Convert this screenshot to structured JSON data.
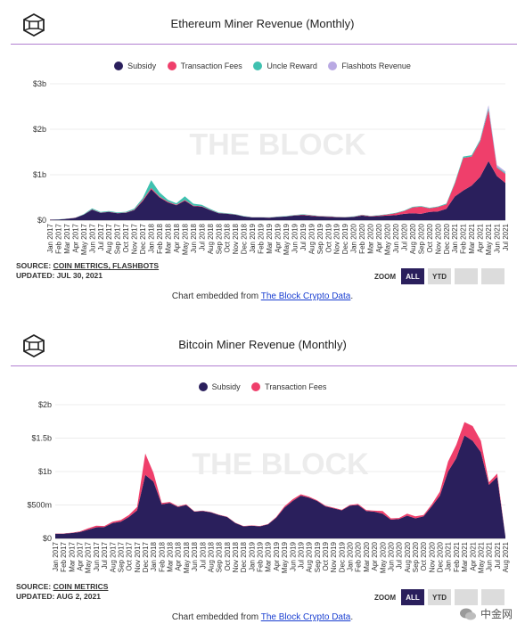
{
  "charts_meta": [
    {
      "title": "Ethereum Miner Revenue (Monthly)",
      "source_prefix": "SOURCE:",
      "source_names": "COIN METRICS, FLASHBOTS",
      "updated": "UPDATED: JUL 30, 2021",
      "watermark": "THE BLOCK",
      "zoom_label": "ZOOM",
      "zoom_all": "ALL",
      "zoom_ytd": "YTD",
      "embed_prefix": "Chart embedded from ",
      "embed_link": "The Block Crypto Data",
      "embed_suffix": "."
    },
    {
      "title": "Bitcoin Miner Revenue (Monthly)",
      "source_prefix": "SOURCE:",
      "source_names": "COIN METRICS",
      "updated": "UPDATED: AUG 2, 2021",
      "watermark": "THE BLOCK",
      "zoom_label": "ZOOM",
      "zoom_all": "ALL",
      "zoom_ytd": "YTD",
      "embed_prefix": "Chart embedded from ",
      "embed_link": "The Block Crypto Data",
      "embed_suffix": "."
    }
  ],
  "wechat_watermark": "中金网",
  "chart_data": [
    {
      "type": "area",
      "title": "Ethereum Miner Revenue (Monthly)",
      "stacked": true,
      "yticks": [
        "$0",
        "$1b",
        "$2b",
        "$3b"
      ],
      "ylim": [
        0,
        3000000000
      ],
      "legend_position": "top-center",
      "x": [
        "Jan 2017",
        "Feb 2017",
        "Mar 2017",
        "Apr 2017",
        "May 2017",
        "Jun 2017",
        "Jul 2017",
        "Aug 2017",
        "Sep 2017",
        "Oct 2017",
        "Nov 2017",
        "Dec 2017",
        "Jan 2018",
        "Feb 2018",
        "Mar 2018",
        "Apr 2018",
        "May 2018",
        "Jun 2018",
        "Jul 2018",
        "Aug 2018",
        "Sep 2018",
        "Oct 2018",
        "Nov 2018",
        "Dec 2018",
        "Jan 2019",
        "Feb 2019",
        "Mar 2019",
        "Apr 2019",
        "May 2019",
        "Jun 2019",
        "Jul 2019",
        "Aug 2019",
        "Sep 2019",
        "Oct 2019",
        "Nov 2019",
        "Dec 2019",
        "Jan 2020",
        "Feb 2020",
        "Mar 2020",
        "Apr 2020",
        "May 2020",
        "Jun 2020",
        "Jul 2020",
        "Aug 2020",
        "Sep 2020",
        "Oct 2020",
        "Nov 2020",
        "Dec 2020",
        "Jan 2021",
        "Feb 2021",
        "Mar 2021",
        "Apr 2021",
        "May 2021",
        "Jun 2021",
        "Jul 2021"
      ],
      "series": [
        {
          "name": "Subsidy",
          "color": "#2a1f5c",
          "values": [
            10,
            15,
            30,
            50,
            120,
            230,
            160,
            180,
            150,
            160,
            220,
            420,
            680,
            500,
            390,
            330,
            430,
            310,
            300,
            220,
            150,
            140,
            120,
            80,
            60,
            60,
            55,
            70,
            80,
            100,
            110,
            95,
            80,
            75,
            65,
            60,
            70,
            100,
            80,
            90,
            100,
            110,
            140,
            150,
            140,
            180,
            190,
            250,
            520,
            650,
            760,
            950,
            1300,
            970,
            820
          ]
        },
        {
          "name": "Transaction Fees",
          "color": "#ef3f6b",
          "values": [
            1,
            1,
            1,
            2,
            4,
            8,
            6,
            6,
            6,
            8,
            12,
            25,
            30,
            20,
            15,
            12,
            15,
            12,
            10,
            8,
            6,
            5,
            5,
            4,
            3,
            3,
            3,
            4,
            5,
            8,
            10,
            10,
            8,
            8,
            6,
            6,
            7,
            12,
            10,
            12,
            25,
            40,
            60,
            130,
            160,
            80,
            100,
            100,
            280,
            720,
            640,
            780,
            1130,
            180,
            200
          ]
        },
        {
          "name": "Uncle Reward",
          "color": "#3fc1b0",
          "values": [
            1,
            1,
            2,
            3,
            8,
            20,
            15,
            16,
            14,
            16,
            22,
            40,
            170,
            90,
            40,
            30,
            80,
            40,
            30,
            20,
            12,
            10,
            8,
            6,
            4,
            4,
            4,
            5,
            6,
            8,
            10,
            9,
            7,
            6,
            5,
            5,
            6,
            8,
            7,
            8,
            9,
            10,
            12,
            14,
            12,
            12,
            12,
            15,
            25,
            30,
            30,
            35,
            40,
            25,
            20
          ]
        },
        {
          "name": "Flashbots Revenue",
          "color": "#b9a9e3",
          "values": [
            0,
            0,
            0,
            0,
            0,
            0,
            0,
            0,
            0,
            0,
            0,
            0,
            0,
            0,
            0,
            0,
            0,
            0,
            0,
            0,
            0,
            0,
            0,
            0,
            0,
            0,
            0,
            0,
            0,
            0,
            0,
            0,
            0,
            0,
            0,
            0,
            0,
            0,
            0,
            0,
            0,
            0,
            0,
            0,
            0,
            0,
            0,
            0,
            0,
            0,
            0,
            10,
            60,
            40,
            30
          ]
        }
      ]
    },
    {
      "type": "area",
      "title": "Bitcoin Miner Revenue (Monthly)",
      "stacked": true,
      "yticks": [
        "$0",
        "$500m",
        "$1b",
        "$1.5b",
        "$2b"
      ],
      "ylim": [
        0,
        2000000000
      ],
      "legend_position": "top-center",
      "x": [
        "Jan 2017",
        "Feb 2017",
        "Mar 2017",
        "Apr 2017",
        "May 2017",
        "Jun 2017",
        "Jul 2017",
        "Aug 2017",
        "Sep 2017",
        "Oct 2017",
        "Nov 2017",
        "Dec 2017",
        "Jan 2018",
        "Feb 2018",
        "Mar 2018",
        "Apr 2018",
        "May 2018",
        "Jun 2018",
        "Jul 2018",
        "Aug 2018",
        "Sep 2018",
        "Oct 2018",
        "Nov 2018",
        "Dec 2018",
        "Jan 2019",
        "Feb 2019",
        "Mar 2019",
        "Apr 2019",
        "May 2019",
        "Jun 2019",
        "Jul 2019",
        "Aug 2019",
        "Sep 2019",
        "Oct 2019",
        "Nov 2019",
        "Dec 2019",
        "Jan 2020",
        "Feb 2020",
        "Mar 2020",
        "Apr 2020",
        "May 2020",
        "Jun 2020",
        "Jul 2020",
        "Aug 2020",
        "Sep 2020",
        "Oct 2020",
        "Nov 2020",
        "Dec 2020",
        "Jan 2021",
        "Feb 2021",
        "Mar 2021",
        "Apr 2021",
        "May 2021",
        "Jun 2021",
        "Jul 2021",
        "Aug 2021"
      ],
      "series": [
        {
          "name": "Subsidy",
          "color": "#2a1f5c",
          "values": [
            70,
            70,
            80,
            95,
            130,
            165,
            170,
            230,
            250,
            320,
            420,
            950,
            850,
            510,
            530,
            470,
            500,
            400,
            410,
            390,
            350,
            320,
            230,
            180,
            190,
            180,
            210,
            310,
            460,
            560,
            640,
            610,
            560,
            480,
            450,
            420,
            490,
            500,
            410,
            400,
            370,
            280,
            290,
            340,
            300,
            330,
            480,
            640,
            1000,
            1200,
            1540,
            1460,
            1290,
            800,
            920,
            30
          ]
        },
        {
          "name": "Transaction Fees",
          "color": "#ef3f6b",
          "values": [
            3,
            3,
            5,
            8,
            20,
            25,
            15,
            20,
            25,
            30,
            50,
            320,
            130,
            20,
            15,
            10,
            10,
            5,
            5,
            5,
            5,
            5,
            5,
            5,
            5,
            5,
            5,
            10,
            20,
            25,
            20,
            15,
            10,
            10,
            10,
            8,
            10,
            15,
            12,
            15,
            40,
            20,
            15,
            30,
            30,
            20,
            30,
            60,
            150,
            200,
            200,
            220,
            170,
            40,
            50,
            2
          ]
        }
      ]
    }
  ]
}
